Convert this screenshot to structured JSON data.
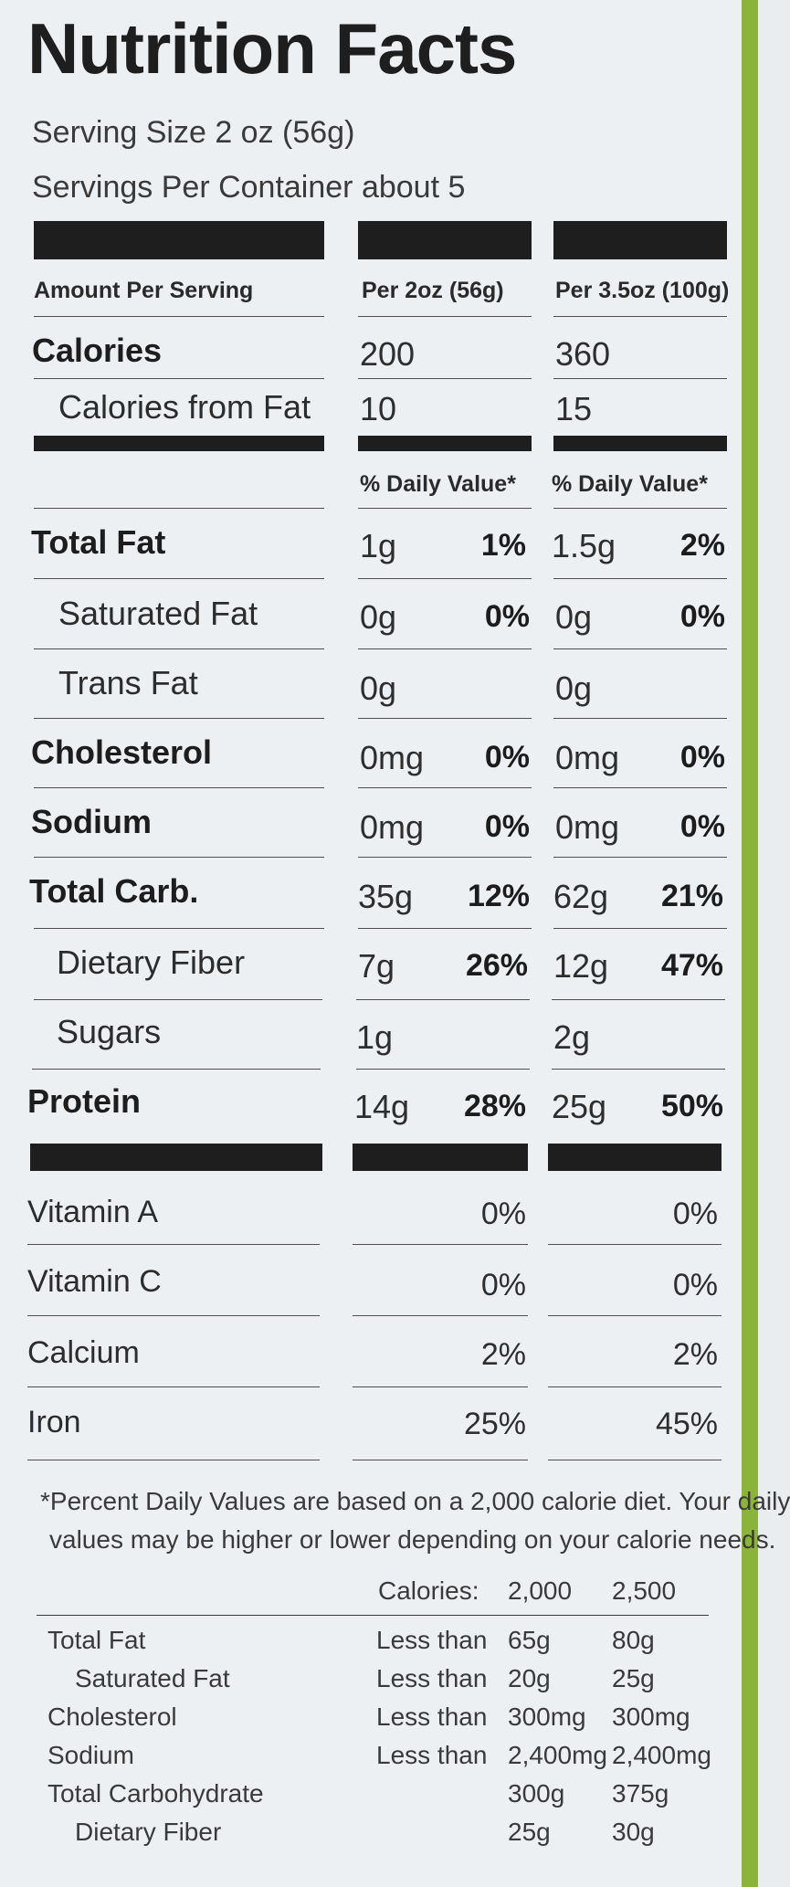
{
  "title": "Nutrition Facts",
  "serving_size": "Serving Size 2 oz (56g)",
  "servings_per_container": "Servings Per Container about 5",
  "header": {
    "amount_label": "Amount Per Serving",
    "col1": "Per 2oz (56g)",
    "col2": "Per 3.5oz (100g)",
    "dv1": "% Daily Value*",
    "dv2": "% Daily Value*"
  },
  "calories": {
    "label": "Calories",
    "v1": "200",
    "v2": "360"
  },
  "calories_fat": {
    "label": "Calories from Fat",
    "v1": "10",
    "v2": "15"
  },
  "nutrients": [
    {
      "name": "Total Fat",
      "v1": "1g",
      "p1": "1%",
      "v2": "1.5g",
      "p2": "2%"
    },
    {
      "name": "Saturated Fat",
      "v1": "0g",
      "p1": "0%",
      "v2": "0g",
      "p2": "0%"
    },
    {
      "name": "Trans Fat",
      "v1": "0g",
      "p1": "",
      "v2": "0g",
      "p2": ""
    },
    {
      "name": "Cholesterol",
      "v1": "0mg",
      "p1": "0%",
      "v2": "0mg",
      "p2": "0%"
    },
    {
      "name": "Sodium",
      "v1": "0mg",
      "p1": "0%",
      "v2": "0mg",
      "p2": "0%"
    },
    {
      "name": "Total Carb.",
      "v1": "35g",
      "p1": "12%",
      "v2": "62g",
      "p2": "21%"
    },
    {
      "name": "Dietary Fiber",
      "v1": "7g",
      "p1": "26%",
      "v2": "12g",
      "p2": "47%"
    },
    {
      "name": "Sugars",
      "v1": "1g",
      "p1": "",
      "v2": "2g",
      "p2": ""
    },
    {
      "name": "Protein",
      "v1": "14g",
      "p1": "28%",
      "v2": "25g",
      "p2": "50%"
    }
  ],
  "vitamins": [
    {
      "name": "Vitamin A",
      "p1": "0%",
      "p2": "0%"
    },
    {
      "name": "Vitamin C",
      "p1": "0%",
      "p2": "0%"
    },
    {
      "name": "Calcium",
      "p1": "2%",
      "p2": "2%"
    },
    {
      "name": "Iron",
      "p1": "25%",
      "p2": "45%"
    }
  ],
  "footnote": {
    "line1": "*Percent Daily Values are based on a 2,000 calorie diet. Your daily",
    "line2": "values may be higher or lower depending on your calorie needs."
  },
  "reference": {
    "header": {
      "label": "Calories:",
      "c1": "2,000",
      "c2": "2,500"
    },
    "rows": [
      {
        "name": "Total Fat",
        "qual": "Less than",
        "c1": "65g",
        "c2": "80g"
      },
      {
        "name": "Saturated Fat",
        "qual": "Less than",
        "c1": "20g",
        "c2": "25g"
      },
      {
        "name": "Cholesterol",
        "qual": "Less than",
        "c1": "300mg",
        "c2": "300mg"
      },
      {
        "name": "Sodium",
        "qual": "Less than",
        "c1": "2,400mg",
        "c2": "2,400mg"
      },
      {
        "name": "Total Carbohydrate",
        "qual": "",
        "c1": "300g",
        "c2": "375g"
      },
      {
        "name": "Dietary Fiber",
        "qual": "",
        "c1": "25g",
        "c2": "30g"
      }
    ]
  }
}
